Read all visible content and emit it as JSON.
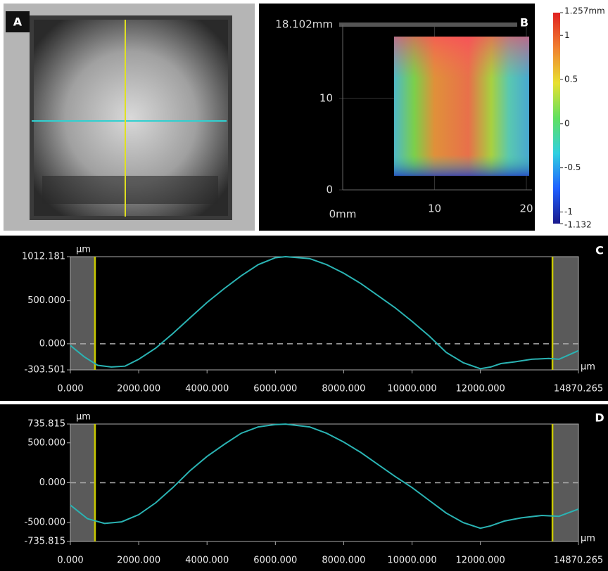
{
  "panel_a": {
    "label": "A"
  },
  "chart_data": [
    {
      "type": "surface",
      "panel_label": "B",
      "xlim": [
        0,
        20
      ],
      "xticks": [
        {
          "value": 0,
          "label": "0mm"
        },
        10,
        20
      ],
      "ylim": [
        0,
        18.102
      ],
      "yticks": [
        0,
        10,
        {
          "value": 18.102,
          "label": "18.102mm"
        }
      ],
      "grid": true,
      "clim": [
        -1.132,
        1.257
      ],
      "cticks": [
        {
          "value": 1.257,
          "label": "1.257mm"
        },
        1,
        0.5,
        0,
        -0.5,
        -1,
        {
          "value": -1.132,
          "label": "-1.132"
        }
      ]
    },
    {
      "type": "line",
      "panel_label": "C",
      "ylabel": "µm",
      "xlabel": "µm",
      "xlim": [
        0,
        14870.265
      ],
      "ylim": [
        -303.501,
        1012.181
      ],
      "xticks": [
        {
          "value": 0,
          "label": "0.000"
        },
        {
          "value": 2000,
          "label": "2000.000"
        },
        {
          "value": 4000,
          "label": "4000.000"
        },
        {
          "value": 6000,
          "label": "6000.000"
        },
        {
          "value": 8000,
          "label": "8000.000"
        },
        {
          "value": 10000,
          "label": "10000.000"
        },
        {
          "value": 12000,
          "label": "12000.000"
        },
        14870.265
      ],
      "yticks": [
        {
          "value": -303.501,
          "label": "-303.501"
        },
        {
          "value": 0,
          "label": "0.000"
        },
        {
          "value": 500,
          "label": "500.000"
        },
        1012.181
      ],
      "cursors_x": [
        720,
        14110
      ],
      "cursor_color": "#c8c800",
      "x": [
        0,
        400,
        800,
        1200,
        1600,
        2000,
        2500,
        3000,
        3500,
        4000,
        4500,
        5000,
        5500,
        6000,
        6300,
        7000,
        7500,
        8000,
        8500,
        9000,
        9500,
        10000,
        10500,
        11000,
        11500,
        12000,
        12300,
        12600,
        13000,
        13500,
        14000,
        14300,
        14870
      ],
      "series": [
        {
          "color": "#2ab3b3",
          "values": [
            -20,
            -150,
            -250,
            -270,
            -260,
            -180,
            -50,
            120,
            300,
            480,
            640,
            790,
            920,
            1000,
            1012,
            990,
            920,
            820,
            700,
            560,
            420,
            260,
            90,
            -100,
            -220,
            -290,
            -270,
            -230,
            -210,
            -180,
            -170,
            -180,
            -80
          ]
        }
      ]
    },
    {
      "type": "line",
      "panel_label": "D",
      "ylabel": "µm",
      "xlabel": "µm",
      "xlim": [
        0,
        14870.265
      ],
      "ylim": [
        -735.815,
        735.815
      ],
      "xticks": [
        {
          "value": 0,
          "label": "0.000"
        },
        {
          "value": 2000,
          "label": "2000.000"
        },
        {
          "value": 4000,
          "label": "4000.000"
        },
        {
          "value": 6000,
          "label": "6000.000"
        },
        {
          "value": 8000,
          "label": "8000.000"
        },
        {
          "value": 10000,
          "label": "10000.000"
        },
        {
          "value": 12000,
          "label": "12000.000"
        },
        14870.265
      ],
      "yticks": [
        {
          "value": -735.815,
          "label": "-735.815"
        },
        {
          "value": -500,
          "label": "-500.000"
        },
        {
          "value": 0,
          "label": "0.000"
        },
        {
          "value": 500,
          "label": "500.000"
        },
        735.815
      ],
      "cursors_x": [
        720,
        14110
      ],
      "cursor_color": "#c8c800",
      "x": [
        0,
        500,
        1000,
        1500,
        2000,
        2500,
        3000,
        3500,
        4000,
        4500,
        5000,
        5500,
        6000,
        6300,
        7000,
        7500,
        8000,
        8500,
        9000,
        9500,
        10000,
        10500,
        11000,
        11500,
        12000,
        12300,
        12700,
        13200,
        13800,
        14300,
        14870
      ],
      "series": [
        {
          "color": "#2ab3b3",
          "values": [
            -280,
            -450,
            -510,
            -490,
            -400,
            -250,
            -60,
            150,
            330,
            480,
            620,
            700,
            730,
            735,
            700,
            620,
            510,
            380,
            230,
            80,
            -60,
            -220,
            -380,
            -500,
            -570,
            -540,
            -480,
            -440,
            -410,
            -420,
            -330
          ]
        }
      ]
    }
  ]
}
